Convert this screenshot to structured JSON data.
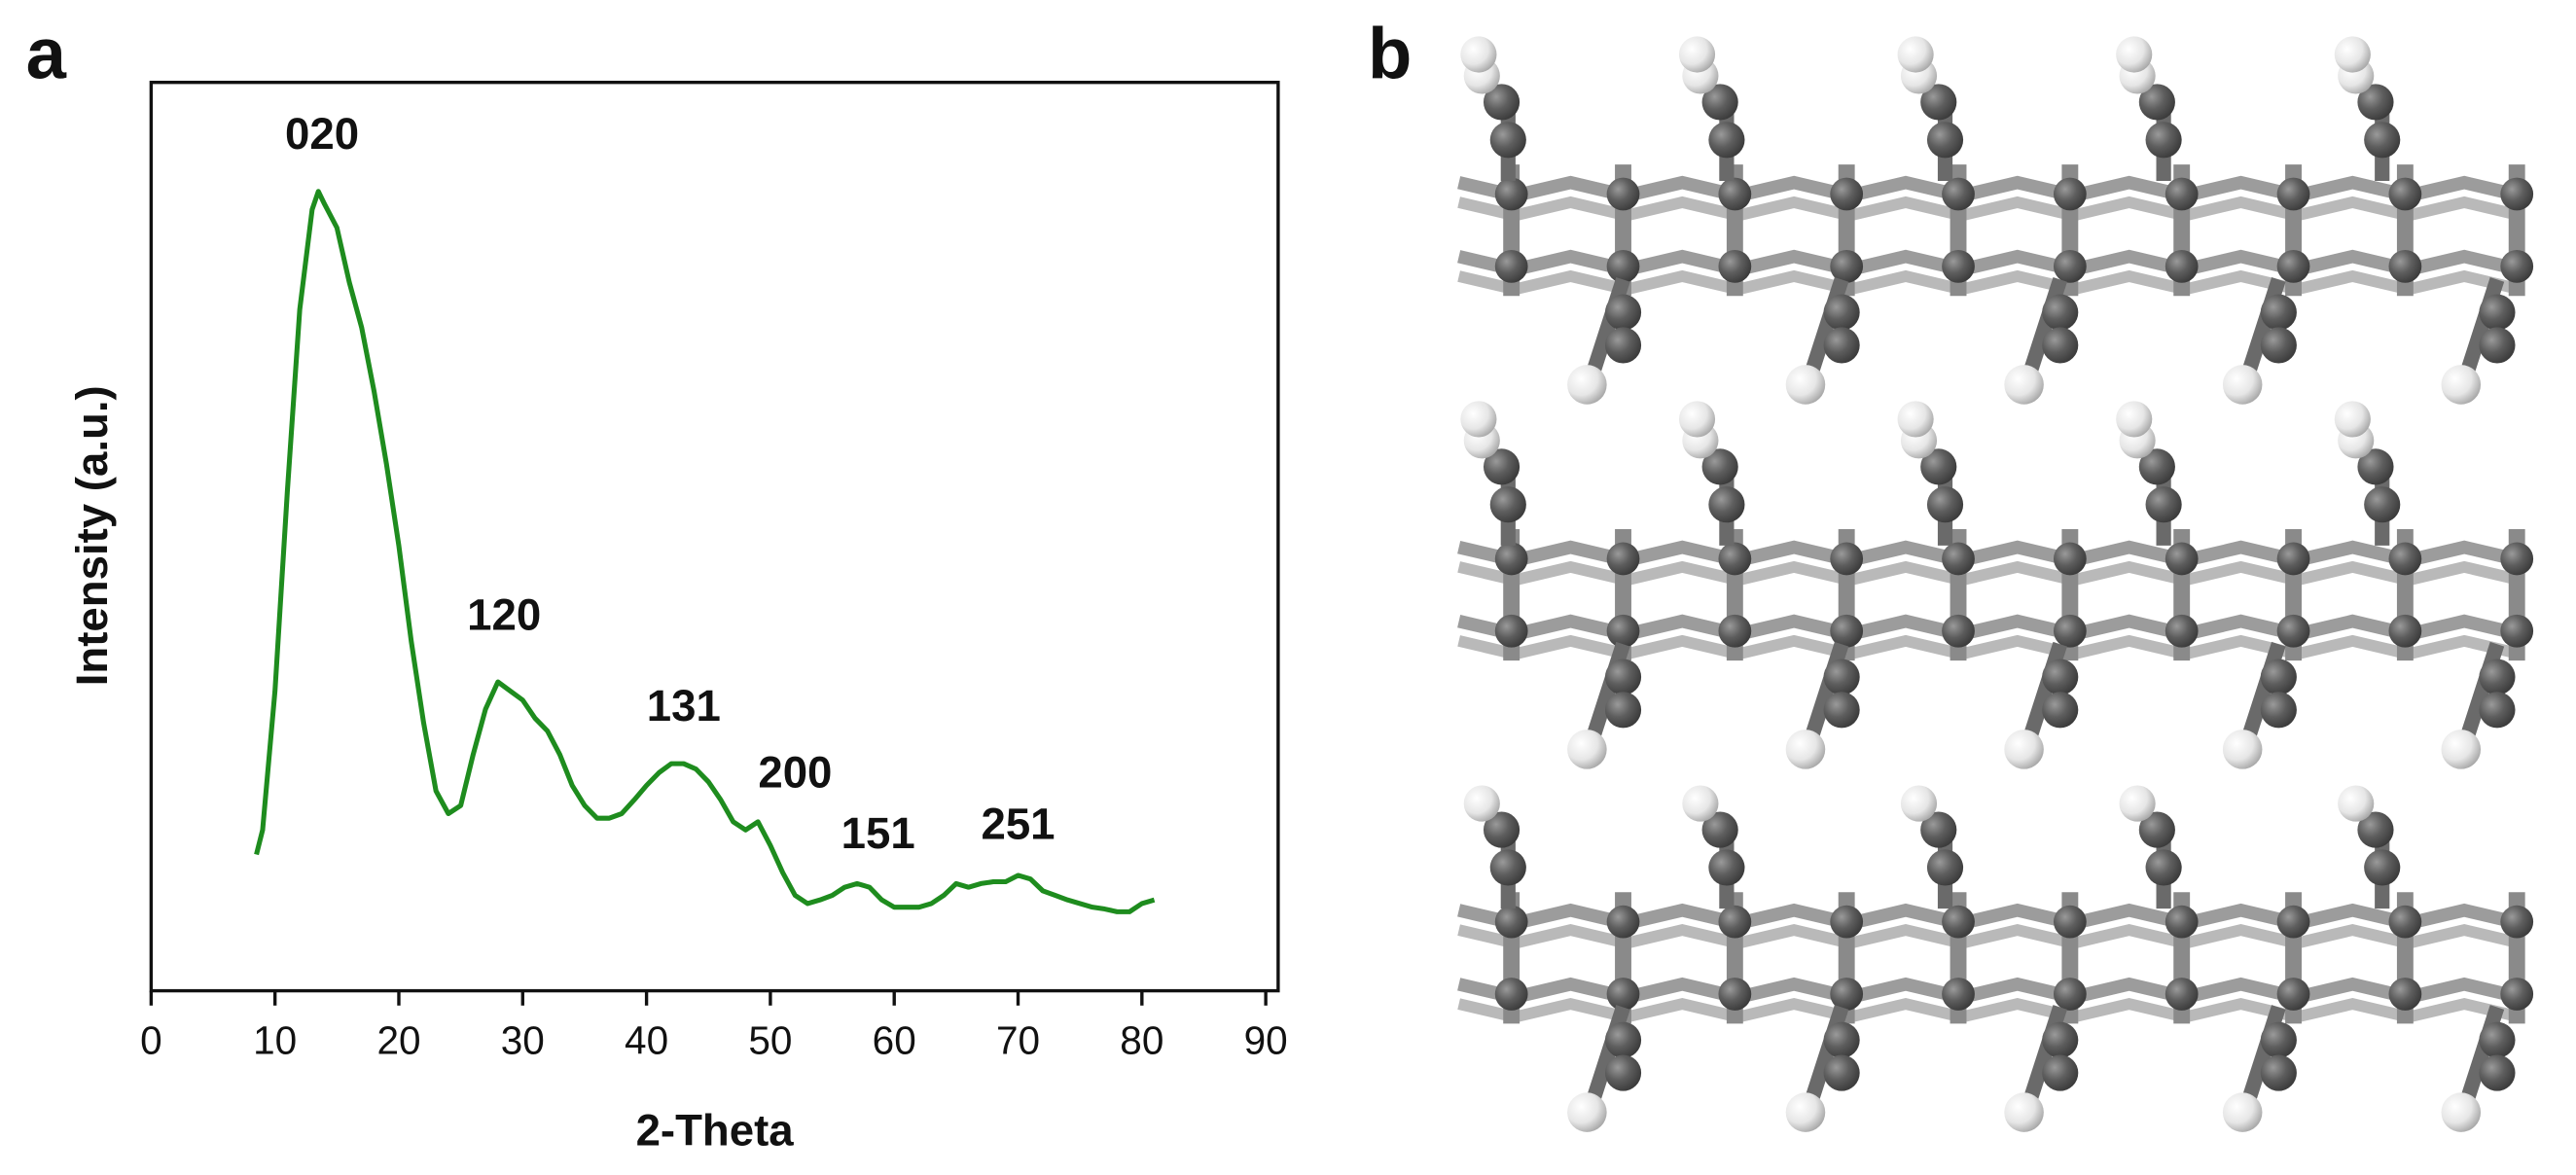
{
  "panel_labels": [
    "a",
    "b"
  ],
  "chart_data": {
    "type": "line",
    "xlabel": "2-Theta",
    "ylabel": "Intensity (a.u.)",
    "x": [
      8.5,
      9,
      10,
      11,
      12,
      13,
      13.5,
      14,
      15,
      16,
      17,
      18,
      19,
      20,
      21,
      22,
      23,
      24,
      25,
      26,
      27,
      28,
      29,
      30,
      31,
      32,
      33,
      34,
      35,
      36,
      37,
      38,
      39,
      40,
      41,
      42,
      43,
      44,
      45,
      46,
      47,
      48,
      49,
      50,
      51,
      52,
      53,
      54,
      55,
      56,
      57,
      58,
      59,
      60,
      61,
      62,
      63,
      64,
      65,
      66,
      67,
      68,
      69,
      70,
      71,
      72,
      73,
      74,
      75,
      76,
      77,
      78,
      79,
      80,
      81
    ],
    "values": [
      15,
      17.7,
      33,
      55,
      75,
      86,
      88,
      86.6,
      84,
      78,
      73,
      66,
      58,
      49,
      38.5,
      29.5,
      22,
      19.5,
      20.4,
      26,
      31,
      34,
      33,
      32,
      30,
      28.6,
      26,
      22.6,
      20.4,
      19,
      19,
      19.5,
      21,
      22.6,
      24,
      25,
      25,
      24.4,
      23,
      21,
      18.6,
      17.7,
      18.6,
      16,
      13,
      10.5,
      9.6,
      10,
      10.5,
      11.4,
      11.8,
      11.4,
      10,
      9.2,
      9.2,
      9.2,
      9.6,
      10.5,
      11.8,
      11.4,
      11.8,
      12,
      12,
      12.7,
      12.3,
      11,
      10.5,
      10,
      9.6,
      9.2,
      9,
      8.7,
      8.7,
      9.6,
      10
    ],
    "color": "#1e8c1e",
    "xlim": [
      0,
      91
    ],
    "xticks": [
      0,
      10,
      20,
      30,
      40,
      50,
      60,
      70,
      80,
      90
    ],
    "ylim": [
      0,
      100
    ],
    "annotations": [
      {
        "text": "020",
        "x": 13.8,
        "y": 94
      },
      {
        "text": "120",
        "x": 28.5,
        "y": 41
      },
      {
        "text": "131",
        "x": 43,
        "y": 31
      },
      {
        "text": "200",
        "x": 52,
        "y": 23.7
      },
      {
        "text": "151",
        "x": 58.7,
        "y": 17
      },
      {
        "text": "251",
        "x": 70,
        "y": 18
      }
    ]
  }
}
